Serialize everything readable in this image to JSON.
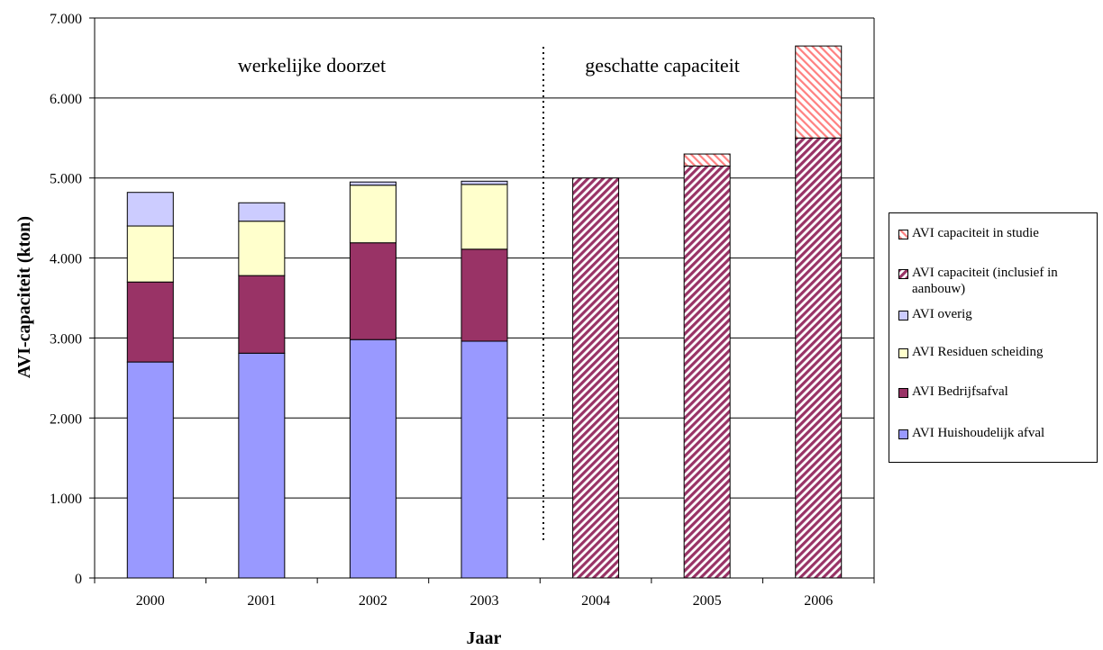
{
  "chart_data": {
    "type": "bar",
    "stacked": true,
    "xlabel": "Jaar",
    "ylabel": "AVI-capaciteit (kton)",
    "categories": [
      "2000",
      "2001",
      "2002",
      "2003",
      "2004",
      "2005",
      "2006"
    ],
    "ylim": [
      0,
      7000
    ],
    "yticks": [
      "0",
      "1.000",
      "2.000",
      "3.000",
      "4.000",
      "5.000",
      "6.000",
      "7.000"
    ],
    "ytick_values": [
      0,
      1000,
      2000,
      3000,
      4000,
      5000,
      6000,
      7000
    ],
    "grid": true,
    "legend_position": "right",
    "series": [
      {
        "name": "AVI Huishoudelijk afval",
        "color": "#9999ff",
        "values": [
          2700,
          2810,
          2980,
          2960,
          0,
          0,
          0
        ]
      },
      {
        "name": "AVI Bedrijfsafval",
        "color": "#993366",
        "values": [
          1000,
          970,
          1210,
          1150,
          0,
          0,
          0
        ]
      },
      {
        "name": "AVI Residuen scheiding",
        "color": "#ffffcc",
        "values": [
          700,
          680,
          720,
          810,
          0,
          0,
          0
        ]
      },
      {
        "name": "AVI overig",
        "color": "#ccccff",
        "values": [
          420,
          230,
          40,
          40,
          0,
          0,
          0
        ]
      },
      {
        "name": "AVI capaciteit (inclusief in aanbouw)",
        "color": "#993366",
        "pattern": "diagonal-dense",
        "values": [
          0,
          0,
          0,
          0,
          5000,
          5150,
          5500
        ]
      },
      {
        "name": "AVI capaciteit in studie",
        "color": "#ff8080",
        "pattern": "diagonal-light",
        "values": [
          0,
          0,
          0,
          0,
          0,
          150,
          1150
        ]
      }
    ],
    "annotations": {
      "left": "werkelijke doorzet",
      "right": "geschatte capaciteit"
    }
  },
  "legend": [
    {
      "label": "AVI capaciteit in studie",
      "series": 5
    },
    {
      "label": "AVI capaciteit (inclusief in aanbouw)",
      "series": 4
    },
    {
      "label": "AVI overig",
      "series": 3
    },
    {
      "label": "AVI Residuen scheiding",
      "series": 2
    },
    {
      "label": "AVI Bedrijfsafval",
      "series": 1
    },
    {
      "label": "AVI Huishoudelijk afval",
      "series": 0
    }
  ]
}
